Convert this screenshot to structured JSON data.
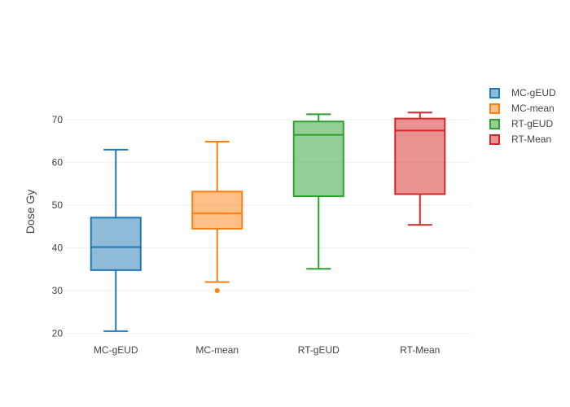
{
  "chart_data": {
    "type": "box",
    "title": "",
    "xlabel": "",
    "ylabel": "Dose Gy",
    "ylim": [
      18,
      79
    ],
    "yticks": [
      20,
      30,
      40,
      50,
      60,
      70
    ],
    "grid": true,
    "legend_position": "top-right",
    "categories": [
      "MC-gEUD",
      "MC-mean",
      "RT-gEUD",
      "RT-Mean"
    ],
    "series": [
      {
        "name": "MC-gEUD",
        "color": "#1f77b4",
        "min": 20.5,
        "q1": 34.8,
        "median": 40.2,
        "q3": 47.1,
        "max": 63.0,
        "outliers": []
      },
      {
        "name": "MC-mean",
        "color": "#ff7f0e",
        "min": 32.0,
        "q1": 44.5,
        "median": 48.1,
        "q3": 53.2,
        "max": 64.9,
        "outliers": [
          30.0
        ]
      },
      {
        "name": "RT-gEUD",
        "color": "#2ca02c",
        "min": 35.1,
        "q1": 52.1,
        "median": 66.5,
        "q3": 69.6,
        "max": 71.3,
        "outliers": []
      },
      {
        "name": "RT-Mean",
        "color": "#d62728",
        "min": 45.4,
        "q1": 52.6,
        "median": 67.5,
        "q3": 70.3,
        "max": 71.7,
        "outliers": []
      }
    ]
  }
}
